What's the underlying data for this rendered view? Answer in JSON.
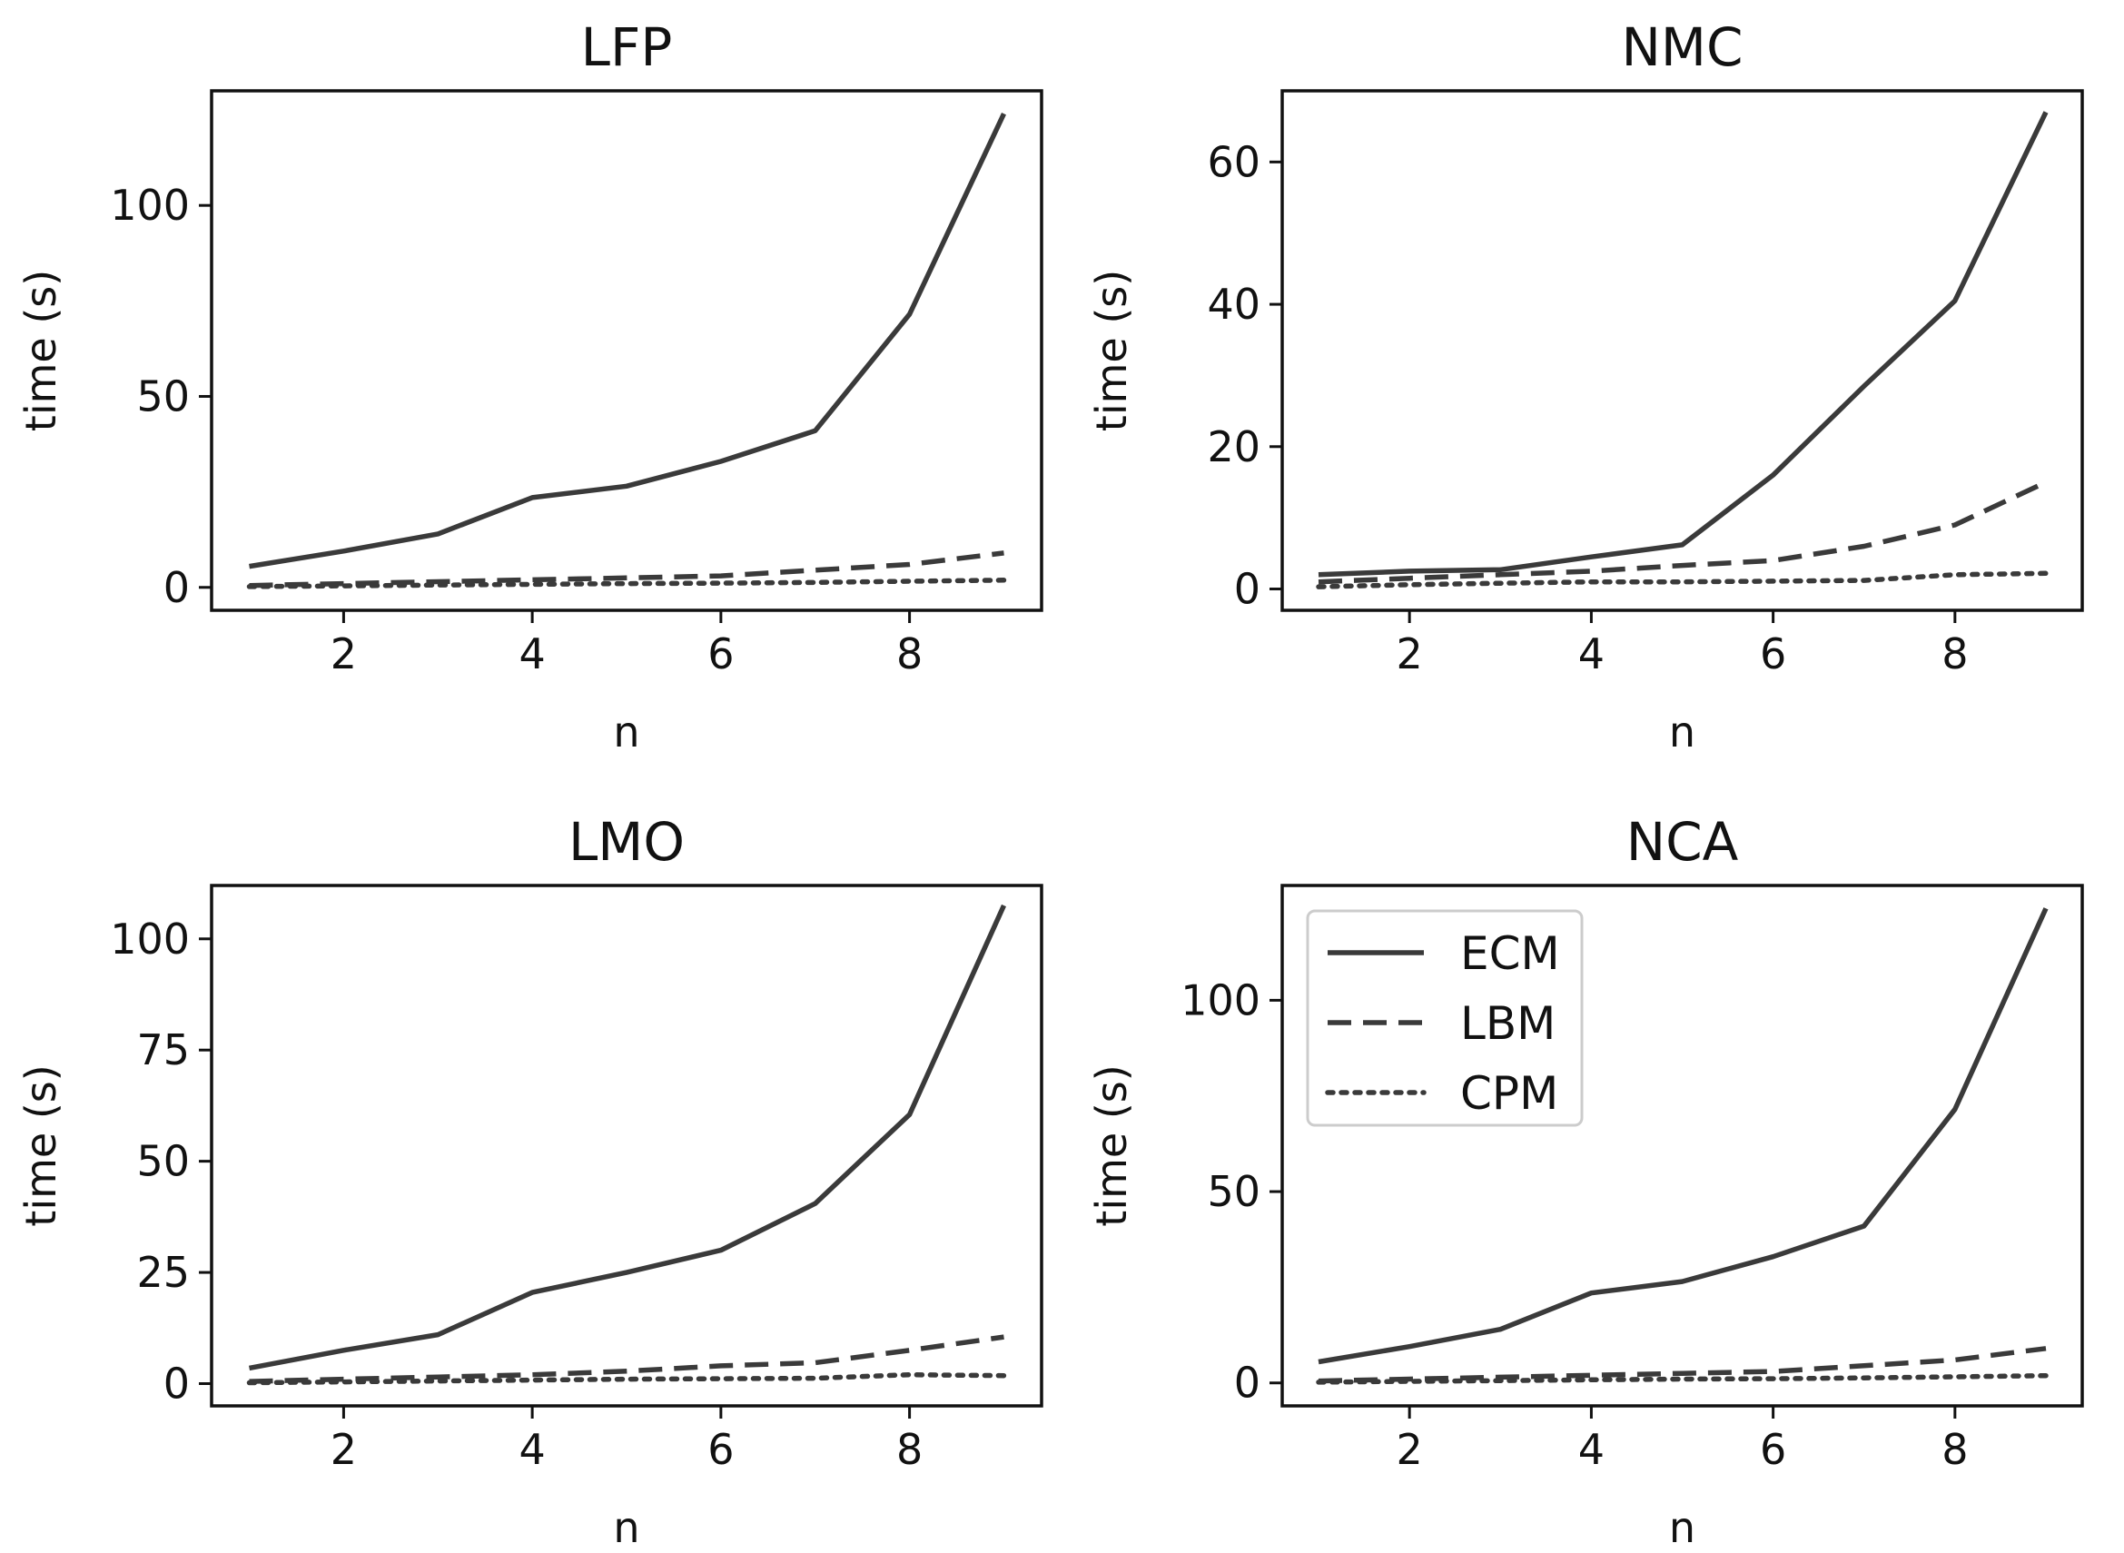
{
  "chart_data": [
    {
      "type": "line",
      "title": "LFP",
      "xlabel": "n",
      "ylabel": "time (s)",
      "x": [
        1,
        2,
        3,
        4,
        5,
        6,
        7,
        8,
        9
      ],
      "xlim": [
        0.6,
        9.4
      ],
      "ylim": [
        -6,
        130
      ],
      "xticks": [
        2,
        4,
        6,
        8
      ],
      "yticks": [
        0,
        50,
        100
      ],
      "legend": false,
      "series": [
        {
          "name": "ECM",
          "style": "solid",
          "values": [
            5.5,
            9.5,
            14,
            23.5,
            26.5,
            33,
            41,
            71.5,
            124
          ]
        },
        {
          "name": "LBM",
          "style": "dashed",
          "values": [
            0.5,
            1,
            1.5,
            2,
            2.5,
            3,
            4.5,
            6,
            9
          ]
        },
        {
          "name": "CPM",
          "style": "dotted",
          "values": [
            0.2,
            0.4,
            0.6,
            0.8,
            1,
            1.1,
            1.3,
            1.6,
            1.9
          ]
        }
      ]
    },
    {
      "type": "line",
      "title": "NMC",
      "xlabel": "n",
      "ylabel": "time (s)",
      "x": [
        1,
        2,
        3,
        4,
        5,
        6,
        7,
        8,
        9
      ],
      "xlim": [
        0.6,
        9.4
      ],
      "ylim": [
        -3,
        70
      ],
      "xticks": [
        2,
        4,
        6,
        8
      ],
      "yticks": [
        0,
        20,
        40,
        60
      ],
      "legend": false,
      "series": [
        {
          "name": "ECM",
          "style": "solid",
          "values": [
            2,
            2.5,
            2.7,
            4.5,
            6.2,
            16,
            28.5,
            40.5,
            67
          ]
        },
        {
          "name": "LBM",
          "style": "dashed",
          "values": [
            1,
            1.5,
            2,
            2.5,
            3.3,
            4,
            6,
            9,
            15
          ]
        },
        {
          "name": "CPM",
          "style": "dotted",
          "values": [
            0.3,
            0.6,
            0.8,
            1,
            1,
            1.1,
            1.2,
            2,
            2.2
          ]
        }
      ]
    },
    {
      "type": "line",
      "title": "LMO",
      "xlabel": "n",
      "ylabel": "time (s)",
      "x": [
        1,
        2,
        3,
        4,
        5,
        6,
        7,
        8,
        9
      ],
      "xlim": [
        0.6,
        9.4
      ],
      "ylim": [
        -5,
        112
      ],
      "xticks": [
        2,
        4,
        6,
        8
      ],
      "yticks": [
        0,
        25,
        50,
        75,
        100
      ],
      "legend": false,
      "series": [
        {
          "name": "ECM",
          "style": "solid",
          "values": [
            3.5,
            7.5,
            11,
            20.5,
            25,
            30,
            40.5,
            60.5,
            107.5
          ]
        },
        {
          "name": "LBM",
          "style": "dashed",
          "values": [
            0.5,
            1,
            1.5,
            2,
            2.8,
            4,
            4.7,
            7.5,
            10.5
          ]
        },
        {
          "name": "CPM",
          "style": "dotted",
          "values": [
            0.2,
            0.4,
            0.6,
            0.8,
            1,
            1.1,
            1.2,
            2,
            1.8
          ]
        }
      ]
    },
    {
      "type": "line",
      "title": "NCA",
      "xlabel": "n",
      "ylabel": "time (s)",
      "x": [
        1,
        2,
        3,
        4,
        5,
        6,
        7,
        8,
        9
      ],
      "xlim": [
        0.6,
        9.4
      ],
      "ylim": [
        -6,
        130
      ],
      "xticks": [
        2,
        4,
        6,
        8
      ],
      "yticks": [
        0,
        50,
        100
      ],
      "legend": true,
      "legend_position": "upper-left",
      "series": [
        {
          "name": "ECM",
          "style": "solid",
          "values": [
            5.5,
            9.5,
            14,
            23.5,
            26.5,
            33,
            41,
            71.5,
            124
          ]
        },
        {
          "name": "LBM",
          "style": "dashed",
          "values": [
            0.5,
            1,
            1.5,
            2,
            2.5,
            3,
            4.5,
            6,
            9
          ]
        },
        {
          "name": "CPM",
          "style": "dotted",
          "values": [
            0.2,
            0.4,
            0.6,
            0.8,
            1,
            1.1,
            1.3,
            1.6,
            1.9
          ]
        }
      ]
    }
  ],
  "colors": {
    "line": "#3a3a3a",
    "axis": "#111111",
    "legend_border": "#cccccc"
  }
}
